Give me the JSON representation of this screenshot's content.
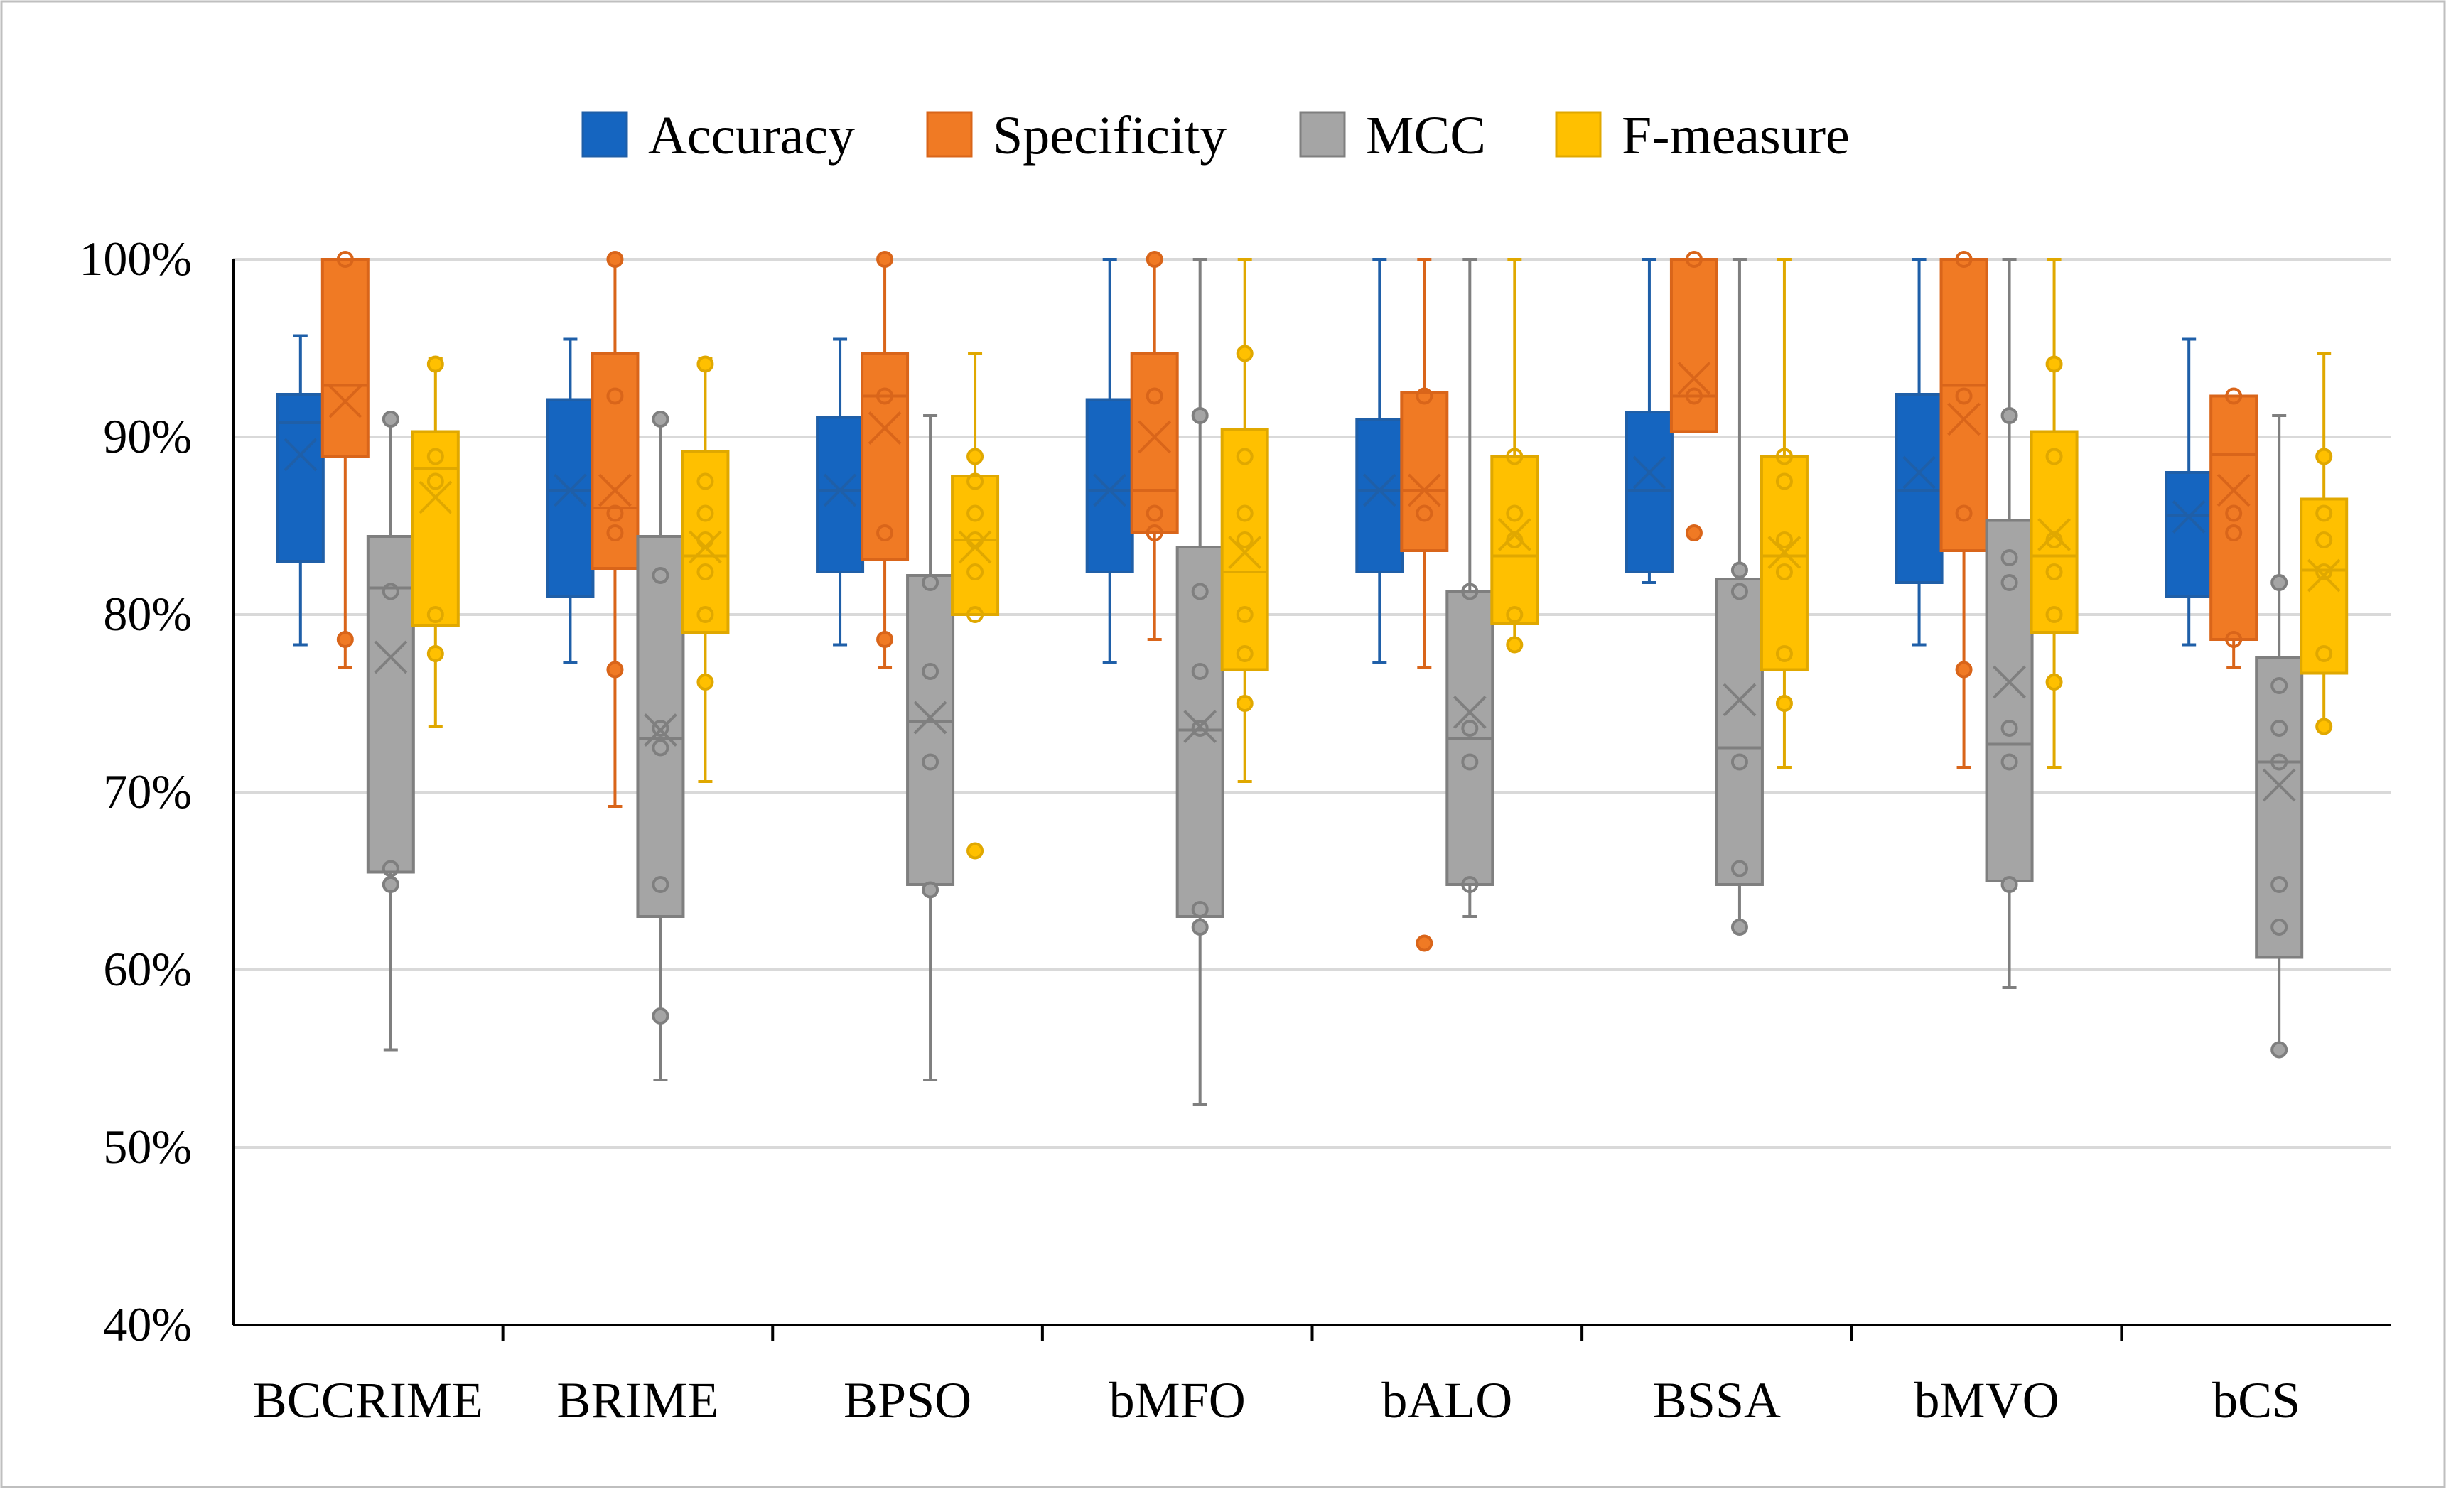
{
  "chart_data": {
    "type": "box",
    "title": "",
    "xlabel": "",
    "ylabel": "",
    "ylim": [
      0.4,
      1.0
    ],
    "yticks": [
      {
        "value": 1.0,
        "label": "100%"
      },
      {
        "value": 0.9,
        "label": "90%"
      },
      {
        "value": 0.8,
        "label": "80%"
      },
      {
        "value": 0.7,
        "label": "70%"
      },
      {
        "value": 0.6,
        "label": "60%"
      },
      {
        "value": 0.5,
        "label": "50%"
      },
      {
        "value": 0.4,
        "label": "40%"
      }
    ],
    "grid": true,
    "legend_position": "top-center",
    "categories": [
      "BCCRIME",
      "BRIME",
      "BPSO",
      "bMFO",
      "bALO",
      "BSSA",
      "bMVO",
      "bCS"
    ],
    "series": [
      {
        "name": "Accuracy",
        "color": "#1565C0",
        "stroke": "#1F5FA8",
        "boxes": [
          {
            "min": 0.783,
            "q1": 0.83,
            "median": 0.908,
            "q3": 0.924,
            "max": 0.957,
            "mean": 0.89,
            "points": []
          },
          {
            "min": 0.773,
            "q1": 0.81,
            "median": 0.87,
            "q3": 0.921,
            "max": 0.955,
            "mean": 0.87,
            "points": []
          },
          {
            "min": 0.783,
            "q1": 0.824,
            "median": 0.87,
            "q3": 0.911,
            "max": 0.955,
            "mean": 0.87,
            "points": []
          },
          {
            "min": 0.773,
            "q1": 0.824,
            "median": 0.87,
            "q3": 0.921,
            "max": 1.0,
            "mean": 0.87,
            "points": []
          },
          {
            "min": 0.773,
            "q1": 0.824,
            "median": 0.87,
            "q3": 0.91,
            "max": 1.0,
            "mean": 0.87,
            "points": []
          },
          {
            "min": 0.818,
            "q1": 0.824,
            "median": 0.87,
            "q3": 0.914,
            "max": 1.0,
            "mean": 0.88,
            "points": []
          },
          {
            "min": 0.783,
            "q1": 0.818,
            "median": 0.87,
            "q3": 0.924,
            "max": 1.0,
            "mean": 0.88,
            "points": []
          },
          {
            "min": 0.783,
            "q1": 0.81,
            "median": 0.856,
            "q3": 0.88,
            "max": 0.955,
            "mean": 0.855,
            "points": []
          }
        ]
      },
      {
        "name": "Specificity",
        "color": "#F07A24",
        "stroke": "#D9651A",
        "boxes": [
          {
            "min": 0.77,
            "q1": 0.889,
            "median": 0.929,
            "q3": 1.0,
            "max": 1.0,
            "mean": 0.92,
            "points": [
              1.0,
              0.786
            ]
          },
          {
            "min": 0.692,
            "q1": 0.826,
            "median": 0.86,
            "q3": 0.947,
            "max": 1.0,
            "mean": 0.87,
            "points": [
              1.0,
              0.923,
              0.857,
              0.846,
              0.769
            ]
          },
          {
            "min": 0.77,
            "q1": 0.831,
            "median": 0.923,
            "q3": 0.947,
            "max": 1.0,
            "mean": 0.905,
            "points": [
              1.0,
              0.923,
              0.846,
              0.786
            ]
          },
          {
            "min": 0.786,
            "q1": 0.846,
            "median": 0.87,
            "q3": 0.947,
            "max": 1.0,
            "mean": 0.9,
            "points": [
              1.0,
              0.923,
              0.857,
              0.846
            ]
          },
          {
            "min": 0.77,
            "q1": 0.836,
            "median": 0.87,
            "q3": 0.925,
            "max": 1.0,
            "mean": 0.87,
            "points": [
              0.923,
              0.857,
              0.615
            ]
          },
          {
            "min": 0.903,
            "q1": 0.903,
            "median": 0.923,
            "q3": 1.0,
            "max": 1.0,
            "mean": 0.933,
            "points": [
              1.0,
              0.923,
              0.846
            ]
          },
          {
            "min": 0.714,
            "q1": 0.836,
            "median": 0.929,
            "q3": 1.0,
            "max": 1.0,
            "mean": 0.91,
            "points": [
              1.0,
              0.923,
              0.857,
              0.769
            ]
          },
          {
            "min": 0.77,
            "q1": 0.786,
            "median": 0.89,
            "q3": 0.923,
            "max": 0.923,
            "mean": 0.87,
            "points": [
              0.923,
              0.857,
              0.846,
              0.786
            ]
          }
        ]
      },
      {
        "name": "MCC",
        "color": "#A5A5A5",
        "stroke": "#7F7F7F",
        "boxes": [
          {
            "min": 0.555,
            "q1": 0.655,
            "median": 0.815,
            "q3": 0.844,
            "max": 0.91,
            "mean": 0.776,
            "points": [
              0.91,
              0.813,
              0.657,
              0.648
            ]
          },
          {
            "min": 0.538,
            "q1": 0.63,
            "median": 0.73,
            "q3": 0.844,
            "max": 0.91,
            "mean": 0.735,
            "points": [
              0.91,
              0.822,
              0.736,
              0.725,
              0.648,
              0.574
            ]
          },
          {
            "min": 0.538,
            "q1": 0.648,
            "median": 0.74,
            "q3": 0.822,
            "max": 0.912,
            "mean": 0.742,
            "points": [
              0.818,
              0.768,
              0.717,
              0.645
            ]
          },
          {
            "min": 0.524,
            "q1": 0.63,
            "median": 0.735,
            "q3": 0.838,
            "max": 1.0,
            "mean": 0.737,
            "points": [
              0.912,
              0.813,
              0.768,
              0.736,
              0.634,
              0.624
            ]
          },
          {
            "min": 0.63,
            "q1": 0.648,
            "median": 0.73,
            "q3": 0.813,
            "max": 1.0,
            "mean": 0.745,
            "points": [
              0.813,
              0.736,
              0.717,
              0.648
            ]
          },
          {
            "min": 0.624,
            "q1": 0.648,
            "median": 0.725,
            "q3": 0.82,
            "max": 1.0,
            "mean": 0.752,
            "points": [
              0.825,
              0.813,
              0.717,
              0.657,
              0.624
            ]
          },
          {
            "min": 0.59,
            "q1": 0.65,
            "median": 0.727,
            "q3": 0.853,
            "max": 1.0,
            "mean": 0.762,
            "points": [
              0.912,
              0.832,
              0.818,
              0.736,
              0.717,
              0.648
            ]
          },
          {
            "min": 0.555,
            "q1": 0.607,
            "median": 0.717,
            "q3": 0.776,
            "max": 0.912,
            "mean": 0.704,
            "points": [
              0.818,
              0.76,
              0.736,
              0.717,
              0.648,
              0.624,
              0.555
            ]
          }
        ]
      },
      {
        "name": "F-measure",
        "color": "#FFC000",
        "stroke": "#E0A800",
        "boxes": [
          {
            "min": 0.737,
            "q1": 0.794,
            "median": 0.882,
            "q3": 0.903,
            "max": 0.944,
            "mean": 0.866,
            "points": [
              0.941,
              0.889,
              0.875,
              0.8,
              0.778
            ]
          },
          {
            "min": 0.706,
            "q1": 0.79,
            "median": 0.833,
            "q3": 0.892,
            "max": 0.944,
            "mean": 0.838,
            "points": [
              0.941,
              0.875,
              0.857,
              0.842,
              0.824,
              0.8,
              0.762
            ]
          },
          {
            "min": 0.8,
            "q1": 0.8,
            "median": 0.842,
            "q3": 0.878,
            "max": 0.947,
            "mean": 0.838,
            "points": [
              0.889,
              0.875,
              0.857,
              0.842,
              0.824,
              0.8,
              0.667
            ]
          },
          {
            "min": 0.706,
            "q1": 0.769,
            "median": 0.824,
            "q3": 0.904,
            "max": 1.0,
            "mean": 0.835,
            "points": [
              0.947,
              0.889,
              0.857,
              0.842,
              0.8,
              0.778,
              0.75
            ]
          },
          {
            "min": 0.783,
            "q1": 0.795,
            "median": 0.833,
            "q3": 0.889,
            "max": 1.0,
            "mean": 0.845,
            "points": [
              0.889,
              0.857,
              0.842,
              0.8,
              0.783
            ]
          },
          {
            "min": 0.714,
            "q1": 0.769,
            "median": 0.833,
            "q3": 0.889,
            "max": 1.0,
            "mean": 0.835,
            "points": [
              0.889,
              0.875,
              0.842,
              0.824,
              0.778,
              0.75
            ]
          },
          {
            "min": 0.714,
            "q1": 0.79,
            "median": 0.833,
            "q3": 0.903,
            "max": 1.0,
            "mean": 0.845,
            "points": [
              0.941,
              0.889,
              0.842,
              0.824,
              0.8,
              0.762
            ]
          },
          {
            "min": 0.737,
            "q1": 0.767,
            "median": 0.825,
            "q3": 0.865,
            "max": 0.947,
            "mean": 0.822,
            "points": [
              0.889,
              0.857,
              0.842,
              0.824,
              0.778,
              0.737
            ]
          }
        ]
      }
    ]
  }
}
